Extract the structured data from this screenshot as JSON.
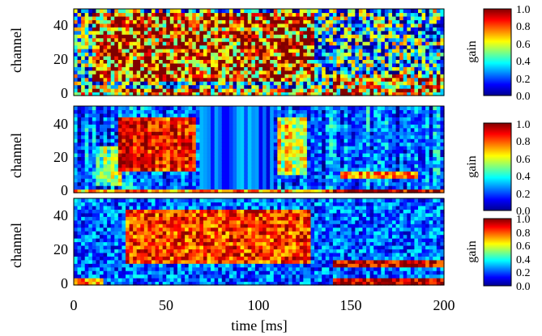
{
  "figure": {
    "xlabel": "time [ms]",
    "x_ticks": [
      "0",
      "50",
      "100",
      "150",
      "200"
    ]
  },
  "chart_data": [
    {
      "type": "heatmap",
      "ylabel": "channel",
      "xlim": [
        0,
        200
      ],
      "ylim": [
        0,
        48
      ],
      "y_ticks": [
        "0",
        "20",
        "40"
      ],
      "colorbar": {
        "label": "gain",
        "ticks": [
          "0.0",
          "0.2",
          "0.4",
          "0.6",
          "0.8",
          "1.0"
        ],
        "range": [
          0,
          1
        ],
        "colormap": "jet"
      },
      "pattern": "noisy",
      "regions": [
        {
          "t": [
            10,
            130
          ],
          "ch": [
            8,
            46
          ],
          "gain": 0.85
        },
        {
          "t": [
            0,
            200
          ],
          "ch": [
            0,
            3
          ],
          "gain": 0.75
        },
        {
          "t": [
            140,
            200
          ],
          "ch": [
            4,
            12
          ],
          "gain": 0.7
        }
      ]
    },
    {
      "type": "heatmap",
      "ylabel": "channel",
      "xlim": [
        0,
        200
      ],
      "ylim": [
        0,
        48
      ],
      "y_ticks": [
        "0",
        "20",
        "40"
      ],
      "colorbar": {
        "label": "gain",
        "ticks": [
          "0.0",
          "0.2",
          "0.4",
          "0.6",
          "0.8",
          "1.0"
        ],
        "range": [
          0,
          1
        ],
        "colormap": "jet"
      },
      "pattern": "smooth",
      "regions": [
        {
          "t": [
            25,
            65
          ],
          "ch": [
            12,
            42
          ],
          "gain": 0.85
        },
        {
          "t": [
            12,
            25
          ],
          "ch": [
            5,
            25
          ],
          "gain": 0.55
        },
        {
          "t": [
            110,
            125
          ],
          "ch": [
            10,
            42
          ],
          "gain": 0.6
        },
        {
          "t": [
            0,
            200
          ],
          "ch": [
            0,
            2
          ],
          "gain": 0.7
        },
        {
          "t": [
            140,
            200
          ],
          "ch": [
            0,
            2
          ],
          "gain": 0.95
        },
        {
          "t": [
            145,
            185
          ],
          "ch": [
            8,
            12
          ],
          "gain": 0.75
        }
      ]
    },
    {
      "type": "heatmap",
      "ylabel": "channel",
      "xlim": [
        0,
        200
      ],
      "ylim": [
        0,
        48
      ],
      "y_ticks": [
        "0",
        "20",
        "40"
      ],
      "colorbar": {
        "label": "gain",
        "ticks": [
          "0.0",
          "0.2",
          "0.4",
          "0.6",
          "0.8",
          "1.0"
        ],
        "range": [
          0,
          1
        ],
        "colormap": "jet"
      },
      "pattern": "blocky",
      "regions": [
        {
          "t": [
            28,
            128
          ],
          "ch": [
            12,
            42
          ],
          "gain": 0.82
        },
        {
          "t": [
            140,
            200
          ],
          "ch": [
            10,
            14
          ],
          "gain": 0.92
        },
        {
          "t": [
            140,
            200
          ],
          "ch": [
            0,
            3
          ],
          "gain": 0.95
        },
        {
          "t": [
            0,
            15
          ],
          "ch": [
            0,
            3
          ],
          "gain": 0.75
        }
      ]
    }
  ]
}
